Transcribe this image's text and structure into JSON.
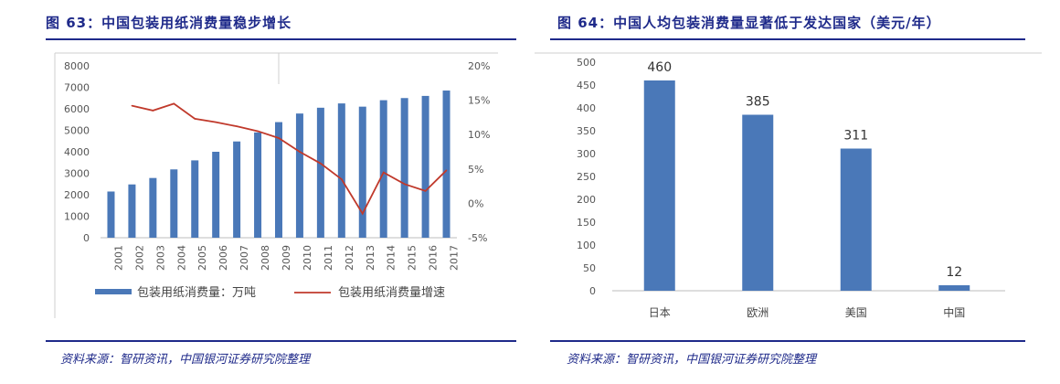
{
  "left": {
    "title": "图 63：中国包装用纸消费量稳步增长",
    "source": "资料来源：智研资讯，中国银河证券研究院整理"
  },
  "right": {
    "title": "图 64：中国人均包装消费量显著低于发达国家（美元/年）",
    "source": "资料来源：智研资讯，中国银河证券研究院整理"
  },
  "chart_data": [
    {
      "type": "bar",
      "title": "",
      "categories": [
        "2001",
        "2002",
        "2003",
        "2004",
        "2005",
        "2006",
        "2007",
        "2008",
        "2009",
        "2010",
        "2011",
        "2012",
        "2013",
        "2014",
        "2015",
        "2016",
        "2017"
      ],
      "series": [
        {
          "name": "包装用纸消费量：万吨",
          "type": "bar",
          "axis": "left",
          "color": "#4a78b8",
          "values": [
            2150,
            2480,
            2780,
            3180,
            3600,
            4000,
            4480,
            4900,
            5380,
            5780,
            6050,
            6250,
            6100,
            6400,
            6500,
            6600,
            6850
          ]
        },
        {
          "name": "包装用纸消费量增速",
          "type": "line",
          "axis": "right",
          "color": "#c0392b",
          "values": [
            null,
            14.2,
            13.5,
            14.5,
            12.3,
            11.8,
            11.2,
            10.5,
            9.5,
            7.5,
            5.8,
            3.5,
            -1.5,
            4.5,
            2.8,
            1.8,
            4.8
          ]
        }
      ],
      "ylim": [
        0,
        8000
      ],
      "yticks": [
        0,
        1000,
        2000,
        3000,
        4000,
        5000,
        6000,
        7000,
        8000
      ],
      "y2lim": [
        -5,
        20
      ],
      "y2ticks": [
        "-5%",
        "0%",
        "5%",
        "10%",
        "15%",
        "20%"
      ],
      "legend": "bottom"
    },
    {
      "type": "bar",
      "title": "",
      "categories": [
        "日本",
        "欧洲",
        "美国",
        "中国"
      ],
      "values": [
        460,
        385,
        311,
        12
      ],
      "data_labels": [
        "460",
        "385",
        "311",
        "12"
      ],
      "ylim": [
        0,
        500
      ],
      "yticks": [
        0,
        50,
        100,
        150,
        200,
        250,
        300,
        350,
        400,
        450,
        500
      ],
      "color": "#4a78b8"
    }
  ]
}
